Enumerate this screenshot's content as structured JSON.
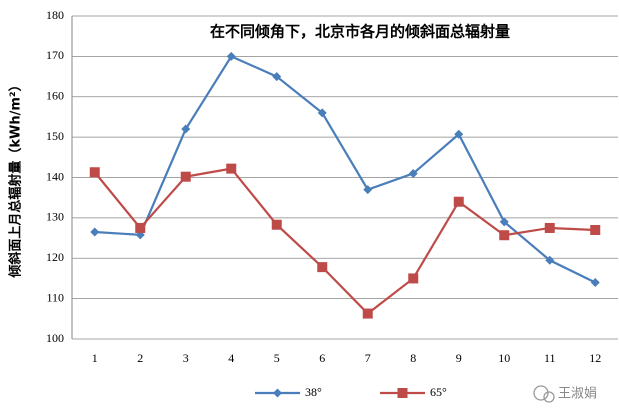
{
  "chart_data": {
    "type": "line",
    "title": "在不同倾角下，北京市各月的倾斜面总辐射量",
    "y_label": "倾斜面上月总辐射量（kWh/m²）",
    "categories": [
      "1",
      "2",
      "3",
      "4",
      "5",
      "6",
      "7",
      "8",
      "9",
      "10",
      "11",
      "12"
    ],
    "series": [
      {
        "name": "38°",
        "color": "#4a7ebb",
        "marker": "diamond",
        "values": [
          126.5,
          125.8,
          152,
          170,
          165,
          156,
          137,
          141,
          150.7,
          129,
          119.5,
          114
        ]
      },
      {
        "name": "65°",
        "color": "#be4b48",
        "marker": "square",
        "values": [
          141.3,
          127.5,
          140.2,
          142.2,
          128.3,
          117.8,
          106.3,
          115,
          134,
          125.7,
          127.5,
          127
        ]
      }
    ],
    "ylim": [
      100,
      180
    ],
    "yticks": [
      100,
      110,
      120,
      130,
      140,
      150,
      160,
      170,
      180
    ],
    "grid": true,
    "legend": "bottom",
    "watermark": "王淑娟"
  }
}
